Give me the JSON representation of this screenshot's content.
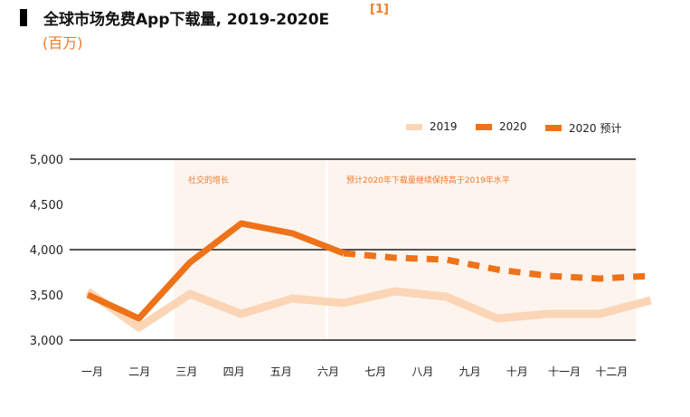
{
  "header": {
    "title": "全球市场免费App下载量, 2019-2020E",
    "reference": "[1]",
    "unit": "(百万)"
  },
  "chart_data": {
    "type": "line",
    "title": "全球市场免费App下载量, 2019-2020E",
    "ylabel": "(百万)",
    "categories": [
      "一月",
      "二月",
      "三月",
      "四月",
      "五月",
      "六月",
      "七月",
      "八月",
      "九月",
      "十月",
      "十一月",
      "十二月"
    ],
    "ylim": [
      3000,
      5000
    ],
    "yticks": [
      "5,000",
      "4,500",
      "4,000",
      "3,500",
      "3,000"
    ],
    "ytick_values": [
      5000,
      4500,
      4000,
      3500,
      3000
    ],
    "gridlines": [
      5000,
      4000,
      3000
    ],
    "legend_position": "top-right",
    "series": [
      {
        "name": "2019",
        "color": "#fbd5b5",
        "style": "solid",
        "values": [
          3540,
          3140,
          3510,
          3290,
          3460,
          3410,
          3540,
          3480,
          3240,
          3290,
          3290,
          3440
        ]
      },
      {
        "name": "2020",
        "color": "#ee7219",
        "style": "solid",
        "values": [
          3500,
          3240,
          3860,
          4290,
          4180,
          3960,
          null,
          null,
          null,
          null,
          null,
          null
        ]
      },
      {
        "name": "2020 预计",
        "color": "#ee7219",
        "style": "dashed",
        "values": [
          null,
          null,
          null,
          null,
          null,
          3960,
          3910,
          3890,
          3780,
          3710,
          3680,
          3710
        ]
      }
    ],
    "annotations": [
      {
        "text": "社交的增长",
        "from": "三月",
        "to": "六月"
      },
      {
        "text": "预计2020年下载量继续保持高于2019年水平",
        "from": "六月",
        "to": "十二月"
      }
    ]
  }
}
